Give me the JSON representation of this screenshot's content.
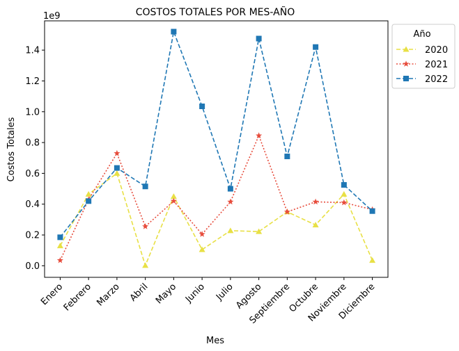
{
  "chart_data": {
    "type": "line",
    "title": "COSTOS TOTALES POR MES-AÑO",
    "xlabel": "Mes",
    "ylabel": "Costos Totales",
    "y_multiplier_label": "1e9",
    "categories": [
      "Enero",
      "Febrero",
      "Marzo",
      "Abril",
      "Mayo",
      "Junio",
      "Julio",
      "Agosto",
      "Septiembre",
      "Octubre",
      "Noviembre",
      "Diciembre"
    ],
    "yticks": [
      0.0,
      0.2,
      0.4,
      0.6,
      0.8,
      1.0,
      1.2,
      1.4
    ],
    "ytick_labels": [
      "0.0",
      "0.2",
      "0.4",
      "0.6",
      "0.8",
      "1.0",
      "1.2",
      "1.4"
    ],
    "ylim": [
      -0.075,
      1.59
    ],
    "grid": false,
    "legend": {
      "title": "Año",
      "placement": "outside-top-right"
    },
    "series": [
      {
        "name": "2020",
        "color": "#e8e045",
        "marker": "triangle",
        "linestyle": "dashed",
        "values": [
          0.13,
          0.465,
          0.6,
          0.002,
          0.45,
          0.105,
          0.228,
          0.222,
          0.35,
          0.265,
          0.465,
          0.035
        ]
      },
      {
        "name": "2021",
        "color": "#e74c3c",
        "marker": "star",
        "linestyle": "dotted",
        "values": [
          0.035,
          0.43,
          0.73,
          0.255,
          0.42,
          0.205,
          0.415,
          0.845,
          0.35,
          0.415,
          0.41,
          0.365
        ]
      },
      {
        "name": "2022",
        "color": "#1f77b4",
        "marker": "square",
        "linestyle": "dashed",
        "values": [
          0.185,
          0.42,
          0.635,
          0.515,
          1.52,
          1.035,
          0.5,
          1.475,
          0.71,
          1.42,
          0.525,
          0.355
        ]
      }
    ]
  }
}
